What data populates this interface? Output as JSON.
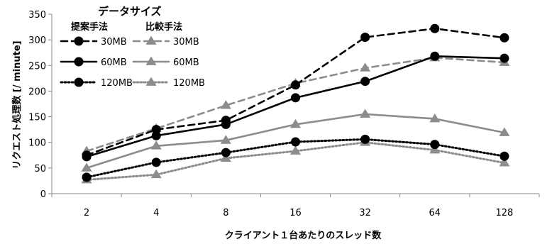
{
  "chart_data": {
    "type": "line",
    "categories": [
      "2",
      "4",
      "8",
      "16",
      "32",
      "64",
      "128"
    ],
    "xlabel": "クライアント１台あたりのスレッド数",
    "ylabel": "リクエスト処理数 [/ minute]",
    "ylim": [
      0,
      350
    ],
    "yticks": [
      0,
      50,
      100,
      150,
      200,
      250,
      300,
      350
    ],
    "grid": false,
    "legend": {
      "title": "データサイズ",
      "col_headers": [
        "提案手法",
        "比較手法"
      ],
      "placement": "top-left"
    },
    "series": [
      {
        "name": "30MB",
        "group": "提案手法",
        "color": "#000000",
        "dash": "dash",
        "marker": "circle",
        "values": [
          75,
          125,
          143,
          212,
          305,
          322,
          304
        ]
      },
      {
        "name": "30MB",
        "group": "比較手法",
        "color": "#8c8c8c",
        "dash": "dash",
        "marker": "triangle",
        "values": [
          83,
          127,
          172,
          215,
          245,
          265,
          256
        ]
      },
      {
        "name": "60MB",
        "group": "提案手法",
        "color": "#000000",
        "dash": "solid",
        "marker": "circle",
        "values": [
          72,
          113,
          135,
          187,
          219,
          268,
          264
        ]
      },
      {
        "name": "60MB",
        "group": "比較手法",
        "color": "#8c8c8c",
        "dash": "solid",
        "marker": "triangle",
        "values": [
          50,
          93,
          104,
          135,
          155,
          146,
          119
        ]
      },
      {
        "name": "120MB",
        "group": "提案手法",
        "color": "#000000",
        "dash": "dot",
        "marker": "circle",
        "values": [
          32,
          61,
          80,
          101,
          106,
          96,
          73
        ]
      },
      {
        "name": "120MB",
        "group": "比較手法",
        "color": "#8c8c8c",
        "dash": "dot",
        "marker": "triangle",
        "values": [
          27,
          37,
          69,
          83,
          100,
          85,
          60
        ]
      }
    ]
  }
}
